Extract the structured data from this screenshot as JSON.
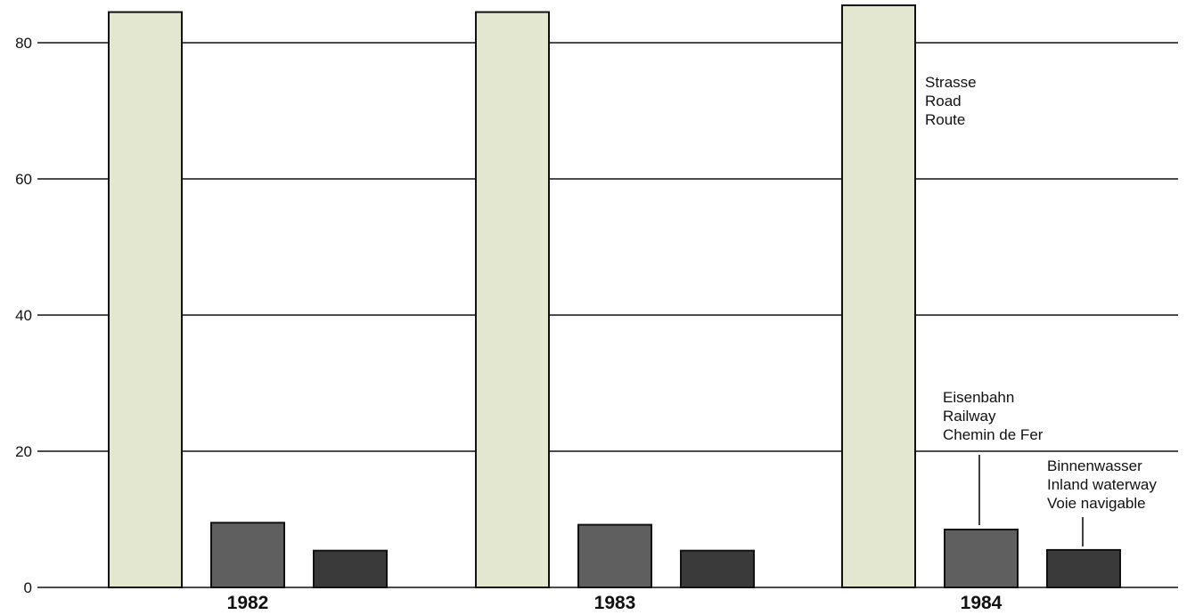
{
  "chart_data": {
    "type": "bar",
    "title": "",
    "xlabel": "",
    "ylabel": "",
    "ylim": [
      0,
      85
    ],
    "yticks": [
      0,
      20,
      40,
      60,
      80
    ],
    "grid": true,
    "categories": [
      "1982",
      "1983",
      "1984"
    ],
    "series": [
      {
        "name": "Strasse / Road / Route",
        "values": [
          84.5,
          84.5,
          85.5
        ],
        "color": "#e3e7cf"
      },
      {
        "name": "Eisenbahn / Railway / Chemin de Fer",
        "values": [
          9.5,
          9.2,
          8.5
        ],
        "color": "#5f5f5f"
      },
      {
        "name": "Binnenwasser / Inland waterway / Voie navigable",
        "values": [
          5.4,
          5.4,
          5.5
        ],
        "color": "#3a3a3a"
      }
    ],
    "annotations": {
      "road": [
        "Strasse",
        "Road",
        "Route"
      ],
      "rail": [
        "Eisenbahn",
        "Railway",
        "Chemin de Fer"
      ],
      "water": [
        "Binnenwasser",
        "Inland waterway",
        "Voie navigable"
      ]
    }
  }
}
